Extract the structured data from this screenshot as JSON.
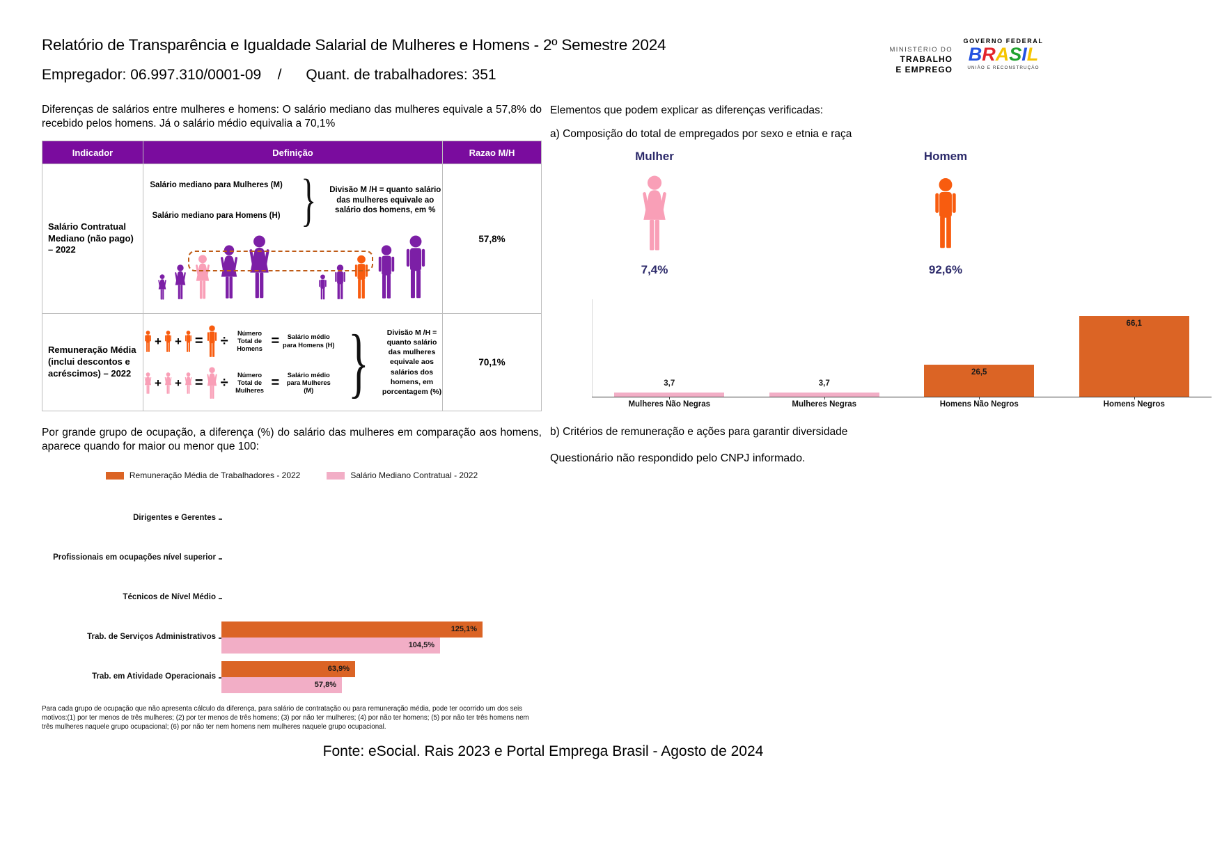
{
  "header": {
    "title": "Relatório de Transparência e Igualdade Salarial de Mulheres e Homens - 2º Semestre 2024",
    "employer_line": "Empregador: 06.997.310/0001-09    /      Quant. de trabalhadores: 351",
    "ministry": {
      "line1": "MINISTÉRIO DO",
      "line2": "TRABALHO",
      "line3": "E EMPREGO"
    },
    "gov": {
      "top": "GOVERNO FEDERAL",
      "brand": "BRASIL",
      "bottom": "UNIÃO E RECONSTRUÇÃO",
      "brand_letters": [
        {
          "ch": "B",
          "color": "#2452E0"
        },
        {
          "ch": "R",
          "color": "#E3242B"
        },
        {
          "ch": "A",
          "color": "#F5C400"
        },
        {
          "ch": "S",
          "color": "#1FA12E"
        },
        {
          "ch": "I",
          "color": "#2452E0"
        },
        {
          "ch": "L",
          "color": "#F5C400"
        }
      ]
    }
  },
  "left": {
    "intro": "Diferenças de salários entre mulheres e homens: O salário mediano das mulheres equivale a 57,8% do recebido pelos homens. Já o salário médio equivalia a 70,1%",
    "table": {
      "headers": [
        "Indicador",
        "Definição",
        "Razao M/H"
      ],
      "rows": [
        {
          "indicator": "Salário Contratual Mediano (não pago) – 2022",
          "def_line1": "Salário mediano para Mulheres (M)",
          "def_line2": "Salário mediano para Homens (H)",
          "explain": "Divisão M /H = quanto salário das mulheres equivale ao salário dos homens, em %",
          "ratio": "57,8%",
          "pictogram": {
            "women_sizes": [
              38,
              52,
              66,
              80,
              94
            ],
            "women_colors": [
              "figure_purple",
              "figure_purple",
              "pink_figure",
              "figure_purple",
              "figure_purple"
            ],
            "men_sizes": [
              38,
              52,
              66,
              80,
              94
            ],
            "men_colors": [
              "figure_purple",
              "figure_purple",
              "orange_figure",
              "figure_purple",
              "figure_purple"
            ]
          }
        },
        {
          "indicator": "Remuneração Média (inclui descontos e acréscimos) – 2022",
          "men_num_label": "Número Total de Homens",
          "men_result_label": "Salário médio para Homens (H)",
          "women_num_label": "Número Total de Mulheres",
          "women_result_label": "Salário médio para Mulheres (M)",
          "explain": "Divisão M /H = quanto salário das mulheres equivale aos salários dos homens, em porcentagem (%)",
          "ratio": "70,1%"
        }
      ]
    },
    "occupation_intro": "Por grande grupo de ocupação, a diferença (%) do salário das mulheres em comparação aos homens, aparece quando for maior ou menor que 100:",
    "footnote": "Para cada grupo de ocupação que não apresenta cálculo da diferença, para salário de contratação ou para remuneração média, pode ter ocorrido um dos seis motivos:(1) por ter menos de três mulheres; (2) por ter menos de três homens; (3) por não ter mulheres; (4) por não ter homens; (5) por não ter três homens nem três mulheres naquele grupo ocupacional; (6) por não ter nem homens nem mulheres naquele grupo ocupacional."
  },
  "right": {
    "heading": "Elementos que podem explicar as diferenças verificadas:",
    "section_a": "a) Composição do total de empregados por sexo e etnia e raça",
    "mulher_label": "Mulher",
    "homem_label": "Homem",
    "mulher_pct": "7,4%",
    "homem_pct": "92,6%",
    "section_b_title": "b) Critérios de remuneração e ações para garantir diversidade",
    "section_b_text": "Questionário não respondido pelo CNPJ informado."
  },
  "footer": "Fonte: eSocial. Rais 2023 e Portal Emprega Brasil - Agosto de 2024",
  "operators": {
    "plus": "+",
    "equals": "=",
    "divide": "÷",
    "brace": "}"
  },
  "chart_data": [
    {
      "id": "composition-by-sex-race",
      "type": "bar",
      "title": "a) Composição do total de empregados por sexo e etnia e raça",
      "categories": [
        "Mulheres Não Negras",
        "Mulheres Negras",
        "Homens Não Negros",
        "Homens Negros"
      ],
      "values": [
        3.7,
        3.7,
        26.5,
        66.1
      ],
      "value_labels": [
        "3,7",
        "3,7",
        "26,5",
        "66,1"
      ],
      "bar_colors": [
        "#F2AEC6",
        "#F2AEC6",
        "#DB6425",
        "#DB6425"
      ],
      "ylim": [
        0,
        80
      ],
      "grid": false,
      "legend": null,
      "extra_labels": {
        "mulher_pct": "7,4%",
        "homem_pct": "92,6%"
      }
    },
    {
      "id": "occupation-gap",
      "type": "horizontal-bar",
      "categories": [
        "Dirigentes e Gerentes",
        "Profissionais em ocupações nível superior",
        "Técnicos de Nível Médio",
        "Trab. de Serviços Administrativos",
        "Trab. em Atividade Operacionais"
      ],
      "series": [
        {
          "name": "Remuneração Média de Trabalhadores - 2022",
          "color": "#DB6425",
          "values": [
            null,
            null,
            null,
            125.1,
            63.9
          ],
          "labels": [
            null,
            null,
            null,
            "125,1%",
            "63,9%"
          ]
        },
        {
          "name": "Salário Mediano Contratual - 2022",
          "color": "#F2AEC6",
          "values": [
            null,
            null,
            null,
            104.5,
            57.8
          ],
          "labels": [
            null,
            null,
            null,
            "104,5%",
            "57,8%"
          ]
        }
      ],
      "xlim": [
        0,
        140
      ],
      "legend_position": "top",
      "grid": false
    }
  ],
  "colors": {
    "table_header_purple": "#7A0C9E",
    "figure_purple": "#7C1FA6",
    "pink_figure": "#F99FB7",
    "pink_bar": "#F2AEC6",
    "orange_bar": "#DB6425",
    "orange_figure": "#F85C0F",
    "navy": "#2C2A6A",
    "dashed": "#BF5B16"
  }
}
